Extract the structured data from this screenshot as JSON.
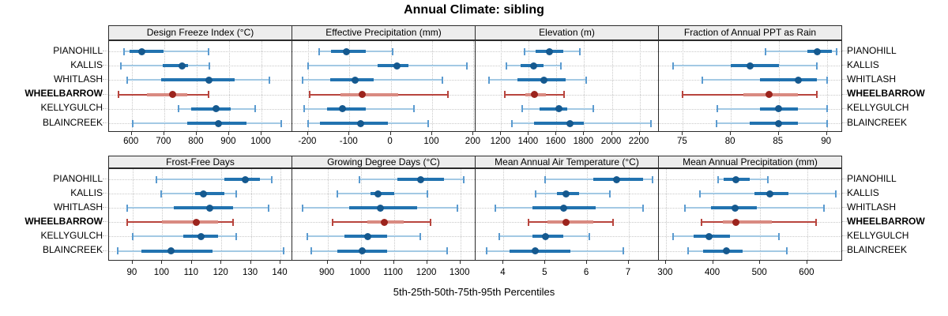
{
  "title": "Annual Climate: sibling",
  "caption": "5th-25th-50th-75th-95th Percentiles",
  "colors": {
    "normal_whisker": "#a3c9e4",
    "normal_cap": "#5b9bd0",
    "normal_box": "#2273b0",
    "normal_dot": "#15598f",
    "highlight_whisker": "#b8453e",
    "highlight_cap": "#b8453e",
    "highlight_box": "#d98a81",
    "highlight_dot": "#9c241d",
    "strip_bg": "#ededed",
    "panel_border": "#2b2b2b",
    "grid": "#c9c9c9",
    "text": "#000000"
  },
  "chart_data": {
    "type": "dotplot",
    "variant": "percentile interval plot, lattice-style 2x4 panel grid, one row per station",
    "percentile_labels": [
      "5th",
      "25th",
      "50th",
      "75th",
      "95th"
    ],
    "stations": [
      "PIANOHILL",
      "KALLIS",
      "WHITLASH",
      "WHEELBARROW",
      "KELLYGULCH",
      "BLAINCREEK"
    ],
    "highlighted_station": "WHEELBARROW",
    "panels": [
      {
        "title": "Design Freeze Index (°C)",
        "row": 0,
        "col": 0,
        "xlim": [
          530,
          1095
        ],
        "ticks": [
          600,
          700,
          800,
          900,
          1000
        ],
        "values": [
          [
            575,
            592,
            630,
            697,
            837
          ],
          [
            566,
            696,
            755,
            774,
            838
          ],
          [
            586,
            690,
            838,
            917,
            1025
          ],
          [
            558,
            647,
            725,
            772,
            837
          ],
          [
            745,
            782,
            861,
            904,
            980
          ],
          [
            604,
            770,
            866,
            954,
            1060
          ]
        ]
      },
      {
        "title": "Effective Precipitation (mm)",
        "row": 0,
        "col": 1,
        "xlim": [
          -238,
          205
        ],
        "ticks": [
          -200,
          -100,
          0,
          100,
          200
        ],
        "values": [
          [
            -174,
            -144,
            -108,
            -60,
            5
          ],
          [
            -200,
            -32,
            14,
            42,
            183
          ],
          [
            -213,
            -146,
            -87,
            -42,
            124
          ],
          [
            -197,
            -122,
            -69,
            19,
            139
          ],
          [
            -210,
            -154,
            -116,
            -60,
            56
          ],
          [
            -200,
            -172,
            -72,
            -7,
            91
          ]
        ]
      },
      {
        "title": "Elevation (m)",
        "row": 0,
        "col": 2,
        "xlim": [
          1015,
          2340
        ],
        "ticks": [
          1200,
          1400,
          1600,
          1800,
          2000,
          2200
        ],
        "values": [
          [
            1370,
            1450,
            1550,
            1650,
            1770
          ],
          [
            1240,
            1340,
            1433,
            1505,
            1630
          ],
          [
            1110,
            1320,
            1510,
            1665,
            1815
          ],
          [
            1225,
            1375,
            1440,
            1525,
            1655
          ],
          [
            1350,
            1475,
            1620,
            1675,
            1865
          ],
          [
            1280,
            1435,
            1700,
            1800,
            2285
          ]
        ]
      },
      {
        "title": "Fraction of Annual PPT as Rain",
        "row": 0,
        "col": 3,
        "xlim": [
          72.5,
          91.6
        ],
        "ticks": [
          75,
          80,
          85,
          90
        ],
        "values": [
          [
            83.6,
            88,
            89,
            90.5,
            91
          ],
          [
            74,
            80,
            82,
            85,
            89
          ],
          [
            77,
            83,
            87,
            89,
            90
          ],
          [
            75,
            81.3,
            84,
            87,
            89
          ],
          [
            78.6,
            83,
            85,
            87,
            90
          ],
          [
            78.5,
            82,
            85,
            87,
            90
          ]
        ]
      },
      {
        "title": "Frost-Free Days",
        "row": 1,
        "col": 0,
        "xlim": [
          82,
          144
        ],
        "ticks": [
          90,
          100,
          110,
          120,
          130,
          140
        ],
        "values": [
          [
            98,
            121,
            128,
            133,
            137
          ],
          [
            99.5,
            111,
            114,
            121,
            125
          ],
          [
            88,
            104,
            116,
            124,
            136
          ],
          [
            88,
            100,
            111.5,
            119,
            124
          ],
          [
            90,
            107,
            113,
            119,
            125
          ],
          [
            85,
            93,
            103,
            117,
            141
          ]
        ]
      },
      {
        "title": "Growing Degree Days (°C)",
        "row": 1,
        "col": 1,
        "xlim": [
          794,
          1346
        ],
        "ticks": [
          900,
          1000,
          1100,
          1200,
          1300
        ],
        "values": [
          [
            995,
            1110,
            1180,
            1250,
            1310
          ],
          [
            930,
            1030,
            1053,
            1100,
            1200
          ],
          [
            825,
            965,
            1060,
            1170,
            1290
          ],
          [
            915,
            1020,
            1070,
            1130,
            1210
          ],
          [
            840,
            950,
            1020,
            1080,
            1180
          ],
          [
            850,
            930,
            1005,
            1080,
            1260
          ]
        ]
      },
      {
        "title": "Mean Annual Air Temperature (°C)",
        "row": 1,
        "col": 2,
        "xlim": [
          3.33,
          7.72
        ],
        "ticks": [
          4,
          5,
          6,
          7
        ],
        "values": [
          [
            5.0,
            6.15,
            6.7,
            7.35,
            7.56
          ],
          [
            4.77,
            5.27,
            5.5,
            5.8,
            6.55
          ],
          [
            3.8,
            4.7,
            5.43,
            6.2,
            7.34
          ],
          [
            4.6,
            5.05,
            5.5,
            6.15,
            6.62
          ],
          [
            3.9,
            4.7,
            5.0,
            5.43,
            6.05
          ],
          [
            3.6,
            4.15,
            4.76,
            5.6,
            6.86
          ]
        ]
      },
      {
        "title": "Mean Annual Precipitation (mm)",
        "row": 1,
        "col": 3,
        "xlim": [
          285,
          674
        ],
        "ticks": [
          300,
          400,
          500,
          600
        ],
        "values": [
          [
            410,
            422,
            449,
            478,
            517
          ],
          [
            372,
            487,
            520,
            560,
            660
          ],
          [
            340,
            395,
            446,
            493,
            636
          ],
          [
            375,
            420,
            448,
            524,
            618
          ],
          [
            315,
            358,
            392,
            436,
            540
          ],
          [
            347,
            378,
            429,
            462,
            556
          ]
        ]
      }
    ]
  }
}
